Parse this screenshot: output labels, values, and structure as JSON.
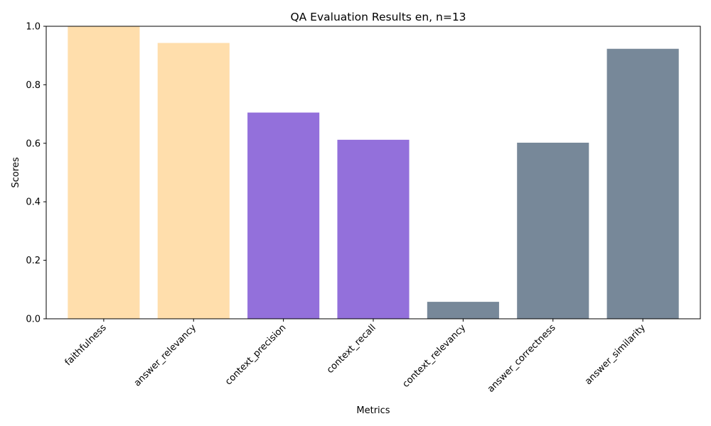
{
  "chart_data": {
    "type": "bar",
    "title": "QA Evaluation Results en, n=13",
    "xlabel": "Metrics",
    "ylabel": "Scores",
    "ylim": [
      0,
      1.0
    ],
    "yticks": [
      "0.0",
      "0.2",
      "0.4",
      "0.6",
      "0.8",
      "1.0"
    ],
    "categories": [
      "faithfulness",
      "answer_relevancy",
      "context_precision",
      "context_recall",
      "context_relevancy",
      "answer_correctness",
      "answer_similarity"
    ],
    "values": [
      1.0,
      0.943,
      0.705,
      0.612,
      0.058,
      0.602,
      0.923
    ],
    "colors": [
      "#ffdeac",
      "#ffdeac",
      "#9370db",
      "#9370db",
      "#778899",
      "#778899",
      "#778899"
    ],
    "grid": false,
    "legend": false
  }
}
